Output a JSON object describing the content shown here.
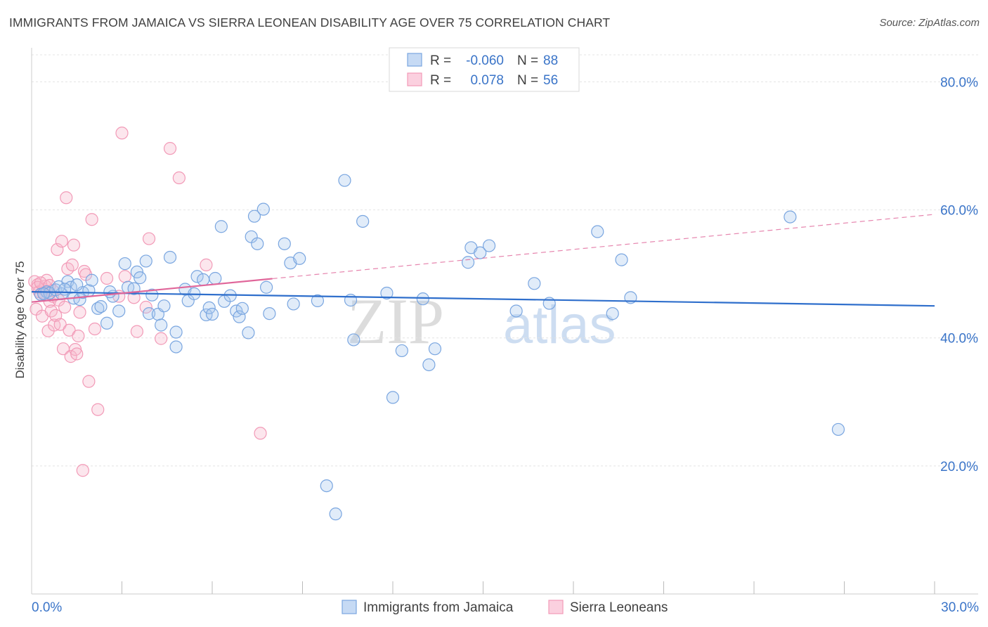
{
  "header": {
    "title": "IMMIGRANTS FROM JAMAICA VS SIERRA LEONEAN DISABILITY AGE OVER 75 CORRELATION CHART",
    "source": "Source: ZipAtlas.com"
  },
  "watermark": {
    "zip": "ZIP",
    "atlas": "atlas"
  },
  "chart_data": {
    "type": "scatter",
    "title": "IMMIGRANTS FROM JAMAICA VS SIERRA LEONEAN DISABILITY AGE OVER 75 CORRELATION CHART",
    "xlabel": "",
    "ylabel": "Disability Age Over 75",
    "xlim": [
      0,
      30
    ],
    "ylim": [
      0,
      84
    ],
    "x_tick_labels": [
      "0.0%",
      "30.0%"
    ],
    "y_ticks": [
      20,
      40,
      60,
      80
    ],
    "y_tick_labels": [
      "20.0%",
      "40.0%",
      "60.0%",
      "80.0%"
    ],
    "legend_stats": [
      {
        "r_label": "R =",
        "r_value": "-0.060",
        "n_label": "N =",
        "n_value": "88"
      },
      {
        "r_label": "R =",
        "r_value": "0.078",
        "n_label": "N =",
        "n_value": "56"
      }
    ],
    "series": [
      {
        "name": "Immigrants from Jamaica",
        "color": "#7aa6e0",
        "line_color": "#2f6fcc",
        "trend": {
          "x0": 0,
          "y0": 47.2,
          "x1": 30,
          "y1": 45.0,
          "dashed_from": null
        },
        "points": [
          [
            0.3,
            46.8
          ],
          [
            0.5,
            47.2
          ],
          [
            0.6,
            47.0
          ],
          [
            0.8,
            47.5
          ],
          [
            1.0,
            46.9
          ],
          [
            1.2,
            48.8
          ],
          [
            1.3,
            47.9
          ],
          [
            1.4,
            46.2
          ],
          [
            1.6,
            46.0
          ],
          [
            1.7,
            47.1
          ],
          [
            1.9,
            47.4
          ],
          [
            2.0,
            49.0
          ],
          [
            2.2,
            44.6
          ],
          [
            2.3,
            44.9
          ],
          [
            2.5,
            42.3
          ],
          [
            2.7,
            46.5
          ],
          [
            2.9,
            44.2
          ],
          [
            3.1,
            51.6
          ],
          [
            3.2,
            47.9
          ],
          [
            3.4,
            47.7
          ],
          [
            3.5,
            50.3
          ],
          [
            3.6,
            49.4
          ],
          [
            3.8,
            52.0
          ],
          [
            3.9,
            43.8
          ],
          [
            4.0,
            46.7
          ],
          [
            4.2,
            43.7
          ],
          [
            4.3,
            42.0
          ],
          [
            4.4,
            45.0
          ],
          [
            4.6,
            52.6
          ],
          [
            4.8,
            40.9
          ],
          [
            4.8,
            38.6
          ],
          [
            5.1,
            47.6
          ],
          [
            5.2,
            45.8
          ],
          [
            5.4,
            46.9
          ],
          [
            5.5,
            49.6
          ],
          [
            5.7,
            49.1
          ],
          [
            5.8,
            43.6
          ],
          [
            5.9,
            44.7
          ],
          [
            6.0,
            43.7
          ],
          [
            6.1,
            49.3
          ],
          [
            6.3,
            57.4
          ],
          [
            6.4,
            45.7
          ],
          [
            6.6,
            46.6
          ],
          [
            6.8,
            44.2
          ],
          [
            6.9,
            43.3
          ],
          [
            7.0,
            44.6
          ],
          [
            7.2,
            40.8
          ],
          [
            7.3,
            55.8
          ],
          [
            7.4,
            59.0
          ],
          [
            7.5,
            54.7
          ],
          [
            7.7,
            60.1
          ],
          [
            7.8,
            47.9
          ],
          [
            7.9,
            43.8
          ],
          [
            8.4,
            54.7
          ],
          [
            8.6,
            51.7
          ],
          [
            8.7,
            45.3
          ],
          [
            8.9,
            52.4
          ],
          [
            9.5,
            45.8
          ],
          [
            9.8,
            16.9
          ],
          [
            10.1,
            12.5
          ],
          [
            10.4,
            64.6
          ],
          [
            10.6,
            45.9
          ],
          [
            10.7,
            39.7
          ],
          [
            11.0,
            58.2
          ],
          [
            11.8,
            47.0
          ],
          [
            12.0,
            30.7
          ],
          [
            12.3,
            38.0
          ],
          [
            13.0,
            46.1
          ],
          [
            13.2,
            35.8
          ],
          [
            13.4,
            38.3
          ],
          [
            14.5,
            51.8
          ],
          [
            14.6,
            54.1
          ],
          [
            14.9,
            53.3
          ],
          [
            15.2,
            54.4
          ],
          [
            16.1,
            44.2
          ],
          [
            16.7,
            48.5
          ],
          [
            17.2,
            45.4
          ],
          [
            18.8,
            56.6
          ],
          [
            19.3,
            43.8
          ],
          [
            19.6,
            52.2
          ],
          [
            19.9,
            46.3
          ],
          [
            25.2,
            58.9
          ],
          [
            26.8,
            25.7
          ],
          [
            0.4,
            46.9
          ],
          [
            0.9,
            48.0
          ],
          [
            1.1,
            47.6
          ],
          [
            1.5,
            48.3
          ],
          [
            2.6,
            47.2
          ]
        ]
      },
      {
        "name": "Sierra Leoneans",
        "color": "#f29ab7",
        "line_color": "#e0669a",
        "trend": {
          "x0": 0,
          "y0": 45.6,
          "x1": 30,
          "y1": 59.3,
          "dashed_from": 8.0
        },
        "points": [
          [
            0.1,
            48.8
          ],
          [
            0.15,
            44.5
          ],
          [
            0.2,
            48.3
          ],
          [
            0.25,
            47.2
          ],
          [
            0.3,
            46.8
          ],
          [
            0.35,
            43.4
          ],
          [
            0.4,
            47.6
          ],
          [
            0.45,
            48.1
          ],
          [
            0.5,
            49.0
          ],
          [
            0.55,
            41.1
          ],
          [
            0.6,
            45.7
          ],
          [
            0.65,
            44.2
          ],
          [
            0.7,
            46.5
          ],
          [
            0.75,
            42.0
          ],
          [
            0.8,
            43.5
          ],
          [
            0.85,
            53.8
          ],
          [
            0.9,
            45.9
          ],
          [
            0.95,
            42.1
          ],
          [
            1.0,
            55.1
          ],
          [
            1.05,
            38.3
          ],
          [
            1.1,
            44.8
          ],
          [
            1.15,
            61.9
          ],
          [
            1.2,
            50.8
          ],
          [
            1.25,
            41.2
          ],
          [
            1.3,
            37.1
          ],
          [
            1.35,
            51.4
          ],
          [
            1.4,
            54.5
          ],
          [
            1.45,
            38.2
          ],
          [
            1.5,
            37.5
          ],
          [
            1.55,
            40.3
          ],
          [
            1.6,
            44.0
          ],
          [
            1.7,
            19.3
          ],
          [
            1.75,
            50.4
          ],
          [
            1.8,
            49.9
          ],
          [
            1.9,
            33.2
          ],
          [
            2.0,
            58.5
          ],
          [
            2.1,
            41.4
          ],
          [
            2.2,
            28.8
          ],
          [
            2.5,
            49.3
          ],
          [
            2.9,
            46.5
          ],
          [
            3.0,
            72.0
          ],
          [
            3.1,
            49.6
          ],
          [
            3.4,
            46.3
          ],
          [
            3.5,
            41.0
          ],
          [
            3.8,
            44.8
          ],
          [
            3.9,
            55.5
          ],
          [
            4.3,
            39.9
          ],
          [
            4.6,
            69.6
          ],
          [
            4.9,
            65.0
          ],
          [
            5.8,
            51.4
          ],
          [
            7.6,
            25.1
          ],
          [
            0.2,
            47.9
          ],
          [
            0.3,
            48.6
          ],
          [
            0.4,
            47.0
          ],
          [
            0.6,
            48.2
          ],
          [
            0.7,
            47.4
          ]
        ]
      }
    ]
  }
}
